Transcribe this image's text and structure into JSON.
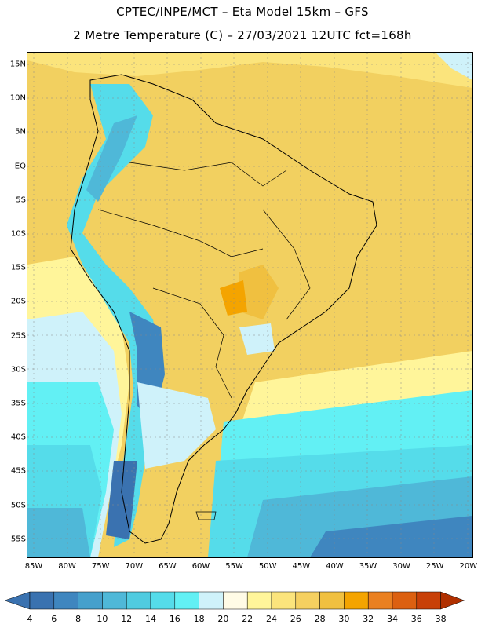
{
  "header": {
    "title_line1": "CPTEC/INPE/MCT –  Eta Model 15km – GFS",
    "title_line2": "2 Metre Temperature (C) – 27/03/2021 12UTC fct=168h"
  },
  "map": {
    "region": "South America",
    "variable": "2 Metre Temperature",
    "units": "C",
    "lat_labels": [
      "15N",
      "10N",
      "5N",
      "EQ",
      "5S",
      "10S",
      "15S",
      "20S",
      "25S",
      "30S",
      "35S",
      "40S",
      "45S",
      "50S",
      "55S"
    ],
    "lon_labels": [
      "85W",
      "80W",
      "75W",
      "70W",
      "65W",
      "60W",
      "55W",
      "50W",
      "45W",
      "40W",
      "35W",
      "30W",
      "25W",
      "20W"
    ]
  },
  "colorbar": {
    "labels": [
      "4",
      "6",
      "8",
      "10",
      "12",
      "14",
      "16",
      "18",
      "20",
      "22",
      "24",
      "26",
      "28",
      "30",
      "32",
      "34",
      "36",
      "38"
    ],
    "colors": [
      "#3a72b0",
      "#3f86bf",
      "#46a0cc",
      "#4fb8d8",
      "#50cbe0",
      "#55dcea",
      "#62f0f4",
      "#cff2fa",
      "#fffbe6",
      "#fff59a",
      "#fbe47c",
      "#f5d060",
      "#f0c040",
      "#f4a400",
      "#ea8020",
      "#dc6010",
      "#c84008",
      "#b03000"
    ]
  }
}
